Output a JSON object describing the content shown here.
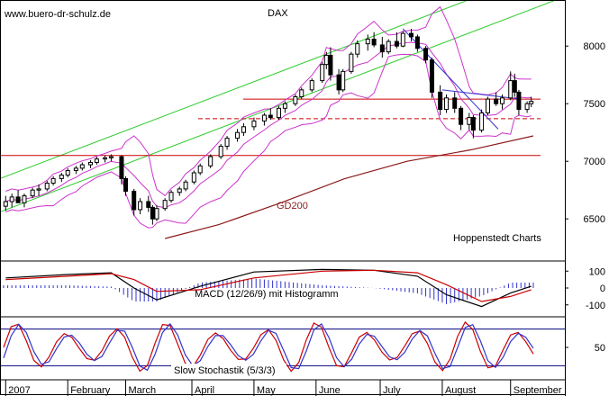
{
  "watermark": "www.buero-dr-schulz.de",
  "chart_data": [
    {
      "type": "line",
      "panel": "price",
      "title": "DAX",
      "ylim": [
        6150,
        8400
      ],
      "y_ticks": [
        {
          "label": "8000",
          "value": 8000
        },
        {
          "label": "7500",
          "value": 7500
        },
        {
          "label": "7000",
          "value": 7000
        },
        {
          "label": "6500",
          "value": 6500
        }
      ],
      "annotations": [
        "GD200",
        "Hoppenstedt Charts"
      ],
      "colors": {
        "candles": "#000000",
        "bollinger": "#cc33cc",
        "channel": "#33cc33",
        "support": "#cc0000",
        "gd200": "#8b1a1a",
        "trendline": "#3333cc"
      },
      "series": [
        {
          "name": "GD200",
          "values": [
            {
              "x": "2007-03-20",
              "y": 6330
            },
            {
              "x": "2007-04-15",
              "y": 6450
            },
            {
              "x": "2007-05-15",
              "y": 6640
            },
            {
              "x": "2007-06-15",
              "y": 6850
            },
            {
              "x": "2007-07-15",
              "y": 7000
            },
            {
              "x": "2007-08-15",
              "y": 7100
            },
            {
              "x": "2007-09-14",
              "y": 7220
            }
          ]
        }
      ],
      "horizontal_lines": [
        {
          "y": 7050,
          "style": "solid"
        },
        {
          "y": 7540,
          "style": "solid"
        },
        {
          "y": 7370,
          "style": "dashed"
        }
      ],
      "candles": [
        {
          "x": "2007-01-02",
          "o": 6610,
          "h": 6700,
          "l": 6570,
          "c": 6650
        },
        {
          "x": "2007-01-05",
          "o": 6650,
          "h": 6720,
          "l": 6600,
          "c": 6690
        },
        {
          "x": "2007-01-08",
          "o": 6690,
          "h": 6750,
          "l": 6650,
          "c": 6640
        },
        {
          "x": "2007-01-11",
          "o": 6640,
          "h": 6720,
          "l": 6600,
          "c": 6700
        },
        {
          "x": "2007-01-15",
          "o": 6700,
          "h": 6770,
          "l": 6680,
          "c": 6750
        },
        {
          "x": "2007-01-18",
          "o": 6750,
          "h": 6800,
          "l": 6700,
          "c": 6760
        },
        {
          "x": "2007-01-22",
          "o": 6760,
          "h": 6830,
          "l": 6740,
          "c": 6810
        },
        {
          "x": "2007-01-25",
          "o": 6810,
          "h": 6870,
          "l": 6790,
          "c": 6850
        },
        {
          "x": "2007-01-29",
          "o": 6850,
          "h": 6900,
          "l": 6820,
          "c": 6880
        },
        {
          "x": "2007-02-01",
          "o": 6880,
          "h": 6940,
          "l": 6860,
          "c": 6920
        },
        {
          "x": "2007-02-05",
          "o": 6920,
          "h": 6960,
          "l": 6890,
          "c": 6940
        },
        {
          "x": "2007-02-08",
          "o": 6940,
          "h": 6990,
          "l": 6920,
          "c": 6970
        },
        {
          "x": "2007-02-12",
          "o": 6970,
          "h": 7010,
          "l": 6940,
          "c": 6990
        },
        {
          "x": "2007-02-15",
          "o": 6990,
          "h": 7040,
          "l": 6970,
          "c": 7020
        },
        {
          "x": "2007-02-19",
          "o": 7020,
          "h": 7050,
          "l": 6990,
          "c": 7030
        },
        {
          "x": "2007-02-22",
          "o": 7030,
          "h": 7060,
          "l": 7000,
          "c": 7040
        },
        {
          "x": "2007-02-27",
          "o": 7040,
          "h": 7050,
          "l": 6800,
          "c": 6850
        },
        {
          "x": "2007-03-01",
          "o": 6850,
          "h": 6870,
          "l": 6700,
          "c": 6740
        },
        {
          "x": "2007-03-05",
          "o": 6740,
          "h": 6760,
          "l": 6530,
          "c": 6580
        },
        {
          "x": "2007-03-08",
          "o": 6580,
          "h": 6680,
          "l": 6540,
          "c": 6650
        },
        {
          "x": "2007-03-12",
          "o": 6650,
          "h": 6700,
          "l": 6560,
          "c": 6600
        },
        {
          "x": "2007-03-14",
          "o": 6600,
          "h": 6620,
          "l": 6450,
          "c": 6500
        },
        {
          "x": "2007-03-16",
          "o": 6500,
          "h": 6620,
          "l": 6480,
          "c": 6590
        },
        {
          "x": "2007-03-20",
          "o": 6590,
          "h": 6680,
          "l": 6570,
          "c": 6660
        },
        {
          "x": "2007-03-23",
          "o": 6660,
          "h": 6750,
          "l": 6640,
          "c": 6730
        },
        {
          "x": "2007-03-27",
          "o": 6730,
          "h": 6780,
          "l": 6700,
          "c": 6760
        },
        {
          "x": "2007-03-30",
          "o": 6760,
          "h": 6840,
          "l": 6740,
          "c": 6820
        },
        {
          "x": "2007-04-03",
          "o": 6820,
          "h": 6920,
          "l": 6800,
          "c": 6900
        },
        {
          "x": "2007-04-06",
          "o": 6900,
          "h": 6980,
          "l": 6880,
          "c": 6960
        },
        {
          "x": "2007-04-11",
          "o": 6960,
          "h": 7060,
          "l": 6940,
          "c": 7040
        },
        {
          "x": "2007-04-16",
          "o": 7040,
          "h": 7150,
          "l": 7020,
          "c": 7130
        },
        {
          "x": "2007-04-19",
          "o": 7130,
          "h": 7220,
          "l": 7100,
          "c": 7200
        },
        {
          "x": "2007-04-24",
          "o": 7200,
          "h": 7280,
          "l": 7170,
          "c": 7250
        },
        {
          "x": "2007-04-27",
          "o": 7250,
          "h": 7330,
          "l": 7220,
          "c": 7300
        },
        {
          "x": "2007-05-02",
          "o": 7300,
          "h": 7380,
          "l": 7270,
          "c": 7350
        },
        {
          "x": "2007-05-07",
          "o": 7350,
          "h": 7420,
          "l": 7310,
          "c": 7400
        },
        {
          "x": "2007-05-10",
          "o": 7400,
          "h": 7460,
          "l": 7360,
          "c": 7380
        },
        {
          "x": "2007-05-14",
          "o": 7380,
          "h": 7480,
          "l": 7360,
          "c": 7460
        },
        {
          "x": "2007-05-17",
          "o": 7460,
          "h": 7520,
          "l": 7420,
          "c": 7500
        },
        {
          "x": "2007-05-22",
          "o": 7500,
          "h": 7580,
          "l": 7480,
          "c": 7560
        },
        {
          "x": "2007-05-25",
          "o": 7560,
          "h": 7640,
          "l": 7540,
          "c": 7620
        },
        {
          "x": "2007-05-30",
          "o": 7620,
          "h": 7720,
          "l": 7600,
          "c": 7700
        },
        {
          "x": "2007-06-04",
          "o": 7700,
          "h": 7860,
          "l": 7680,
          "c": 7840
        },
        {
          "x": "2007-06-06",
          "o": 7840,
          "h": 7950,
          "l": 7800,
          "c": 7920
        },
        {
          "x": "2007-06-08",
          "o": 7920,
          "h": 7990,
          "l": 7700,
          "c": 7750
        },
        {
          "x": "2007-06-12",
          "o": 7750,
          "h": 7800,
          "l": 7580,
          "c": 7620
        },
        {
          "x": "2007-06-14",
          "o": 7620,
          "h": 7800,
          "l": 7600,
          "c": 7780
        },
        {
          "x": "2007-06-18",
          "o": 7780,
          "h": 7950,
          "l": 7760,
          "c": 7930
        },
        {
          "x": "2007-06-21",
          "o": 7930,
          "h": 8050,
          "l": 7900,
          "c": 8020
        },
        {
          "x": "2007-06-26",
          "o": 8020,
          "h": 8100,
          "l": 7960,
          "c": 8060
        },
        {
          "x": "2007-06-29",
          "o": 8060,
          "h": 8120,
          "l": 7990,
          "c": 8010
        },
        {
          "x": "2007-07-03",
          "o": 8010,
          "h": 8080,
          "l": 7900,
          "c": 7950
        },
        {
          "x": "2007-07-06",
          "o": 7950,
          "h": 8060,
          "l": 7930,
          "c": 8040
        },
        {
          "x": "2007-07-10",
          "o": 8040,
          "h": 8120,
          "l": 7980,
          "c": 8000
        },
        {
          "x": "2007-07-13",
          "o": 8000,
          "h": 8130,
          "l": 7990,
          "c": 8110
        },
        {
          "x": "2007-07-17",
          "o": 8110,
          "h": 8150,
          "l": 8040,
          "c": 8080
        },
        {
          "x": "2007-07-20",
          "o": 8080,
          "h": 8100,
          "l": 7950,
          "c": 7980
        },
        {
          "x": "2007-07-24",
          "o": 7980,
          "h": 8000,
          "l": 7850,
          "c": 7880
        },
        {
          "x": "2007-07-27",
          "o": 7880,
          "h": 7900,
          "l": 7550,
          "c": 7600
        },
        {
          "x": "2007-07-31",
          "o": 7600,
          "h": 7660,
          "l": 7400,
          "c": 7450
        },
        {
          "x": "2007-08-03",
          "o": 7450,
          "h": 7580,
          "l": 7420,
          "c": 7550
        },
        {
          "x": "2007-08-07",
          "o": 7550,
          "h": 7600,
          "l": 7420,
          "c": 7460
        },
        {
          "x": "2007-08-10",
          "o": 7460,
          "h": 7480,
          "l": 7270,
          "c": 7320
        },
        {
          "x": "2007-08-14",
          "o": 7320,
          "h": 7420,
          "l": 7270,
          "c": 7380
        },
        {
          "x": "2007-08-16",
          "o": 7380,
          "h": 7400,
          "l": 7200,
          "c": 7270
        },
        {
          "x": "2007-08-20",
          "o": 7270,
          "h": 7450,
          "l": 7250,
          "c": 7420
        },
        {
          "x": "2007-08-23",
          "o": 7420,
          "h": 7560,
          "l": 7400,
          "c": 7540
        },
        {
          "x": "2007-08-27",
          "o": 7540,
          "h": 7600,
          "l": 7480,
          "c": 7500
        },
        {
          "x": "2007-08-30",
          "o": 7500,
          "h": 7580,
          "l": 7450,
          "c": 7550
        },
        {
          "x": "2007-09-03",
          "o": 7550,
          "h": 7780,
          "l": 7530,
          "c": 7700
        },
        {
          "x": "2007-09-05",
          "o": 7700,
          "h": 7760,
          "l": 7560,
          "c": 7600
        },
        {
          "x": "2007-09-07",
          "o": 7600,
          "h": 7620,
          "l": 7400,
          "c": 7450
        },
        {
          "x": "2007-09-11",
          "o": 7450,
          "h": 7520,
          "l": 7420,
          "c": 7500
        },
        {
          "x": "2007-09-13",
          "o": 7500,
          "h": 7560,
          "l": 7470,
          "c": 7520
        }
      ]
    },
    {
      "type": "bar",
      "panel": "macd",
      "title": "MACD (12/26/9) mit Histogramm",
      "ylim": [
        -160,
        160
      ],
      "y_ticks": [
        {
          "label": "100",
          "value": 100
        },
        {
          "label": "0",
          "value": 0
        },
        {
          "label": "-100",
          "value": -100
        }
      ],
      "series": [
        {
          "name": "MACD",
          "values": [
            {
              "x": "2007-01-02",
              "y": 60
            },
            {
              "x": "2007-02-01",
              "y": 80
            },
            {
              "x": "2007-02-22",
              "y": 90
            },
            {
              "x": "2007-03-05",
              "y": 0
            },
            {
              "x": "2007-03-16",
              "y": -70
            },
            {
              "x": "2007-04-06",
              "y": 10
            },
            {
              "x": "2007-05-02",
              "y": 95
            },
            {
              "x": "2007-06-04",
              "y": 110
            },
            {
              "x": "2007-06-29",
              "y": 105
            },
            {
              "x": "2007-07-20",
              "y": 70
            },
            {
              "x": "2007-08-03",
              "y": -40
            },
            {
              "x": "2007-08-20",
              "y": -110
            },
            {
              "x": "2007-09-03",
              "y": -30
            },
            {
              "x": "2007-09-13",
              "y": 10
            }
          ]
        },
        {
          "name": "Signal",
          "values": [
            {
              "x": "2007-01-02",
              "y": 50
            },
            {
              "x": "2007-02-01",
              "y": 70
            },
            {
              "x": "2007-02-22",
              "y": 85
            },
            {
              "x": "2007-03-05",
              "y": 50
            },
            {
              "x": "2007-03-16",
              "y": -20
            },
            {
              "x": "2007-04-06",
              "y": -10
            },
            {
              "x": "2007-05-02",
              "y": 60
            },
            {
              "x": "2007-06-04",
              "y": 100
            },
            {
              "x": "2007-06-29",
              "y": 105
            },
            {
              "x": "2007-07-20",
              "y": 90
            },
            {
              "x": "2007-08-03",
              "y": 20
            },
            {
              "x": "2007-08-20",
              "y": -80
            },
            {
              "x": "2007-09-03",
              "y": -50
            },
            {
              "x": "2007-09-13",
              "y": -10
            }
          ]
        }
      ]
    },
    {
      "type": "line",
      "panel": "stochastic",
      "title": "Slow Stochastik (5/3/3)",
      "ylim": [
        0,
        100
      ],
      "y_ticks": [
        {
          "label": "50",
          "value": 50
        }
      ],
      "horizontal_lines": [
        {
          "y": 80
        },
        {
          "y": 20
        }
      ]
    }
  ],
  "x_axis": {
    "labels": [
      {
        "label": "2007",
        "date": "2007-01-02"
      },
      {
        "label": "February",
        "date": "2007-02-01"
      },
      {
        "label": "March",
        "date": "2007-03-01"
      },
      {
        "label": "April",
        "date": "2007-04-02"
      },
      {
        "label": "May",
        "date": "2007-05-02"
      },
      {
        "label": "June",
        "date": "2007-06-01"
      },
      {
        "label": "July",
        "date": "2007-07-02"
      },
      {
        "label": "August",
        "date": "2007-08-01"
      },
      {
        "label": "September",
        "date": "2007-09-03"
      }
    ]
  }
}
